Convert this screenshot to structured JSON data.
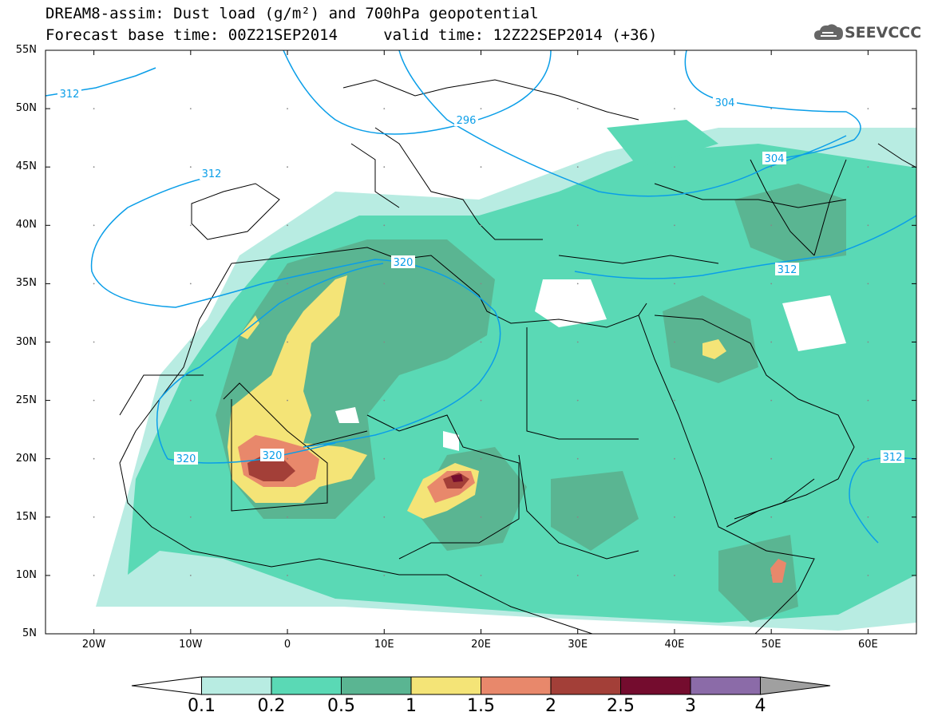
{
  "header": {
    "title_line1": "DREAM8-assim: Dust load (g/m²) and 700hPa geopotential",
    "title_line2": "Forecast base time: 00Z21SEP2014     valid time: 12Z22SEP2014 (+36)",
    "logo_text": "SEEVCCC"
  },
  "map": {
    "lon_range": [
      -25,
      65
    ],
    "lat_range": [
      5,
      55
    ],
    "lat_ticks": [
      "55N",
      "50N",
      "45N",
      "40N",
      "35N",
      "30N",
      "25N",
      "20N",
      "15N",
      "10N",
      "5N"
    ],
    "lon_ticks": [
      "20W",
      "10W",
      "0",
      "10E",
      "20E",
      "30E",
      "40E",
      "50E",
      "60E"
    ],
    "contour_labels": [
      "312",
      "296",
      "304",
      "312",
      "304",
      "320",
      "312",
      "320",
      "320",
      "312"
    ],
    "contour_color": "#0a9ee8",
    "coastline_color": "#000000"
  },
  "legend": {
    "levels": [
      "0.1",
      "0.2",
      "0.5",
      "1",
      "1.5",
      "2",
      "2.5",
      "3",
      "4"
    ],
    "colors": [
      "#ffffff",
      "#b8ece2",
      "#5ad9b5",
      "#5ab592",
      "#f4e477",
      "#e8886b",
      "#a33f38",
      "#740c2e",
      "#8b6ba8",
      "#a0a0a0"
    ]
  }
}
